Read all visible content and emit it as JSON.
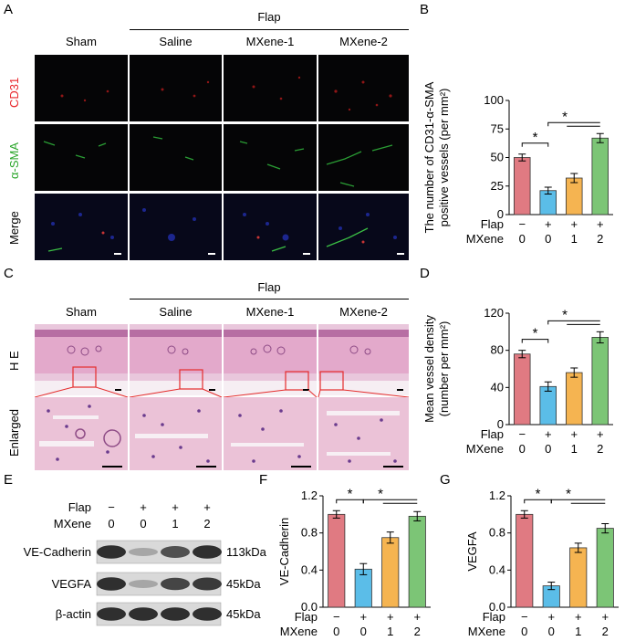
{
  "panel_labels": [
    "A",
    "B",
    "C",
    "D",
    "E",
    "F",
    "G"
  ],
  "panel_a": {
    "group_label": "Flap",
    "columns": [
      "Sham",
      "Saline",
      "MXene-1",
      "MXene-2"
    ],
    "rows": [
      "CD31",
      "α-SMA",
      "Merge"
    ],
    "row_colors": [
      "#e8262b",
      "#2aa62a",
      "#000000"
    ]
  },
  "panel_c": {
    "group_label": "Flap",
    "columns": [
      "Sham",
      "Saline",
      "MXene-1",
      "MXene-2"
    ],
    "rows": [
      "H E",
      "Enlarged"
    ]
  },
  "condition_table": {
    "flap_label": "Flap",
    "mxene_label": "MXene",
    "flap": [
      "−",
      "+",
      "+",
      "+"
    ],
    "mxene": [
      "0",
      "0",
      "1",
      "2"
    ]
  },
  "colors": {
    "sham": "#e07a82",
    "saline": "#5bbde8",
    "mxene1": "#f5b451",
    "mxene2": "#7cc576"
  },
  "panel_e": {
    "flap_label": "Flap",
    "mxene_label": "MXene",
    "flap": [
      "−",
      "+",
      "+",
      "+"
    ],
    "mxene": [
      "0",
      "0",
      "1",
      "2"
    ],
    "bands": [
      {
        "name": "VE-Cadherin",
        "size": "113kDa",
        "intensity": [
          0.85,
          0.3,
          0.7,
          0.85
        ]
      },
      {
        "name": "VEGFA",
        "size": "45kDa",
        "intensity": [
          0.85,
          0.3,
          0.75,
          0.8
        ]
      },
      {
        "name": "β-actin",
        "size": "45kDa",
        "intensity": [
          0.85,
          0.85,
          0.85,
          0.85
        ]
      }
    ]
  },
  "chart_data": [
    {
      "panel": "B",
      "type": "bar",
      "categories": [
        "Sham",
        "Saline",
        "MXene-1",
        "MXene-2"
      ],
      "values": [
        50,
        21,
        32,
        67
      ],
      "errors": [
        3,
        3,
        4,
        4
      ],
      "ylabel": "The number of CD31-α-SMA positive vessels (per mm²)",
      "ylim": [
        0,
        100
      ],
      "yticks": [
        "0",
        "25",
        "50",
        "75",
        "100"
      ],
      "significance": [
        "*",
        "*"
      ]
    },
    {
      "panel": "D",
      "type": "bar",
      "categories": [
        "Sham",
        "Saline",
        "MXene-1",
        "MXene-2"
      ],
      "values": [
        76,
        41,
        56,
        94
      ],
      "errors": [
        4,
        5,
        5,
        6
      ],
      "ylabel": "Mean vessel density (number per mm²)",
      "ylim": [
        0,
        120
      ],
      "yticks": [
        "0",
        "40",
        "80",
        "120"
      ],
      "significance": [
        "*",
        "*"
      ]
    },
    {
      "panel": "F",
      "type": "bar",
      "categories": [
        "Sham",
        "Saline",
        "MXene-1",
        "MXene-2"
      ],
      "values": [
        1.0,
        0.41,
        0.75,
        0.98
      ],
      "errors": [
        0.04,
        0.06,
        0.06,
        0.05
      ],
      "ylabel": "VE-Cadherin",
      "ylim": [
        0,
        1.2
      ],
      "yticks": [
        "0.0",
        "0.4",
        "0.8",
        "1.2"
      ],
      "significance": [
        "*",
        "*"
      ]
    },
    {
      "panel": "G",
      "type": "bar",
      "categories": [
        "Sham",
        "Saline",
        "MXene-1",
        "MXene-2"
      ],
      "values": [
        1.0,
        0.23,
        0.64,
        0.85
      ],
      "errors": [
        0.04,
        0.04,
        0.05,
        0.05
      ],
      "ylabel": "VEGFA",
      "ylim": [
        0,
        1.2
      ],
      "yticks": [
        "0.0",
        "0.4",
        "0.8",
        "1.2"
      ],
      "significance": [
        "*",
        "*"
      ]
    }
  ]
}
